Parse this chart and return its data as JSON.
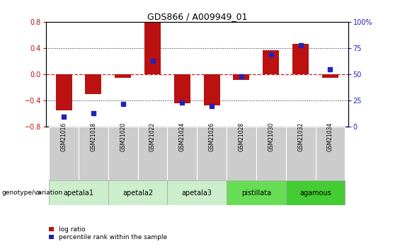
{
  "title": "GDS866 / A009949_01",
  "samples": [
    "GSM21016",
    "GSM21018",
    "GSM21020",
    "GSM21022",
    "GSM21024",
    "GSM21026",
    "GSM21028",
    "GSM21030",
    "GSM21032",
    "GSM21034"
  ],
  "log_ratios": [
    -0.55,
    -0.3,
    -0.05,
    0.79,
    -0.44,
    -0.47,
    -0.08,
    0.37,
    0.47,
    -0.05
  ],
  "percentile_ranks": [
    10,
    13,
    22,
    63,
    23,
    20,
    48,
    69,
    78,
    55
  ],
  "ylim_left": [
    -0.8,
    0.8
  ],
  "ylim_right": [
    0,
    100
  ],
  "yticks_left": [
    -0.8,
    -0.4,
    0.0,
    0.4,
    0.8
  ],
  "yticks_right": [
    0,
    25,
    50,
    75,
    100
  ],
  "bar_color": "#bb1111",
  "dot_color": "#2222bb",
  "hline_color": "#cc2222",
  "dotted_color": "#222222",
  "bar_width": 0.55,
  "group_spans": [
    {
      "label": "apetala1",
      "start": 0,
      "end": 1,
      "color": "#cceecc"
    },
    {
      "label": "apetala2",
      "start": 2,
      "end": 3,
      "color": "#cceecc"
    },
    {
      "label": "apetala3",
      "start": 4,
      "end": 5,
      "color": "#cceecc"
    },
    {
      "label": "pistillata",
      "start": 6,
      "end": 7,
      "color": "#66dd55"
    },
    {
      "label": "agamous",
      "start": 8,
      "end": 9,
      "color": "#44cc33"
    }
  ],
  "sample_bg_color": "#cccccc",
  "legend_label_bar": "log ratio",
  "legend_label_dot": "percentile rank within the sample",
  "geno_label": "genotype/variation"
}
